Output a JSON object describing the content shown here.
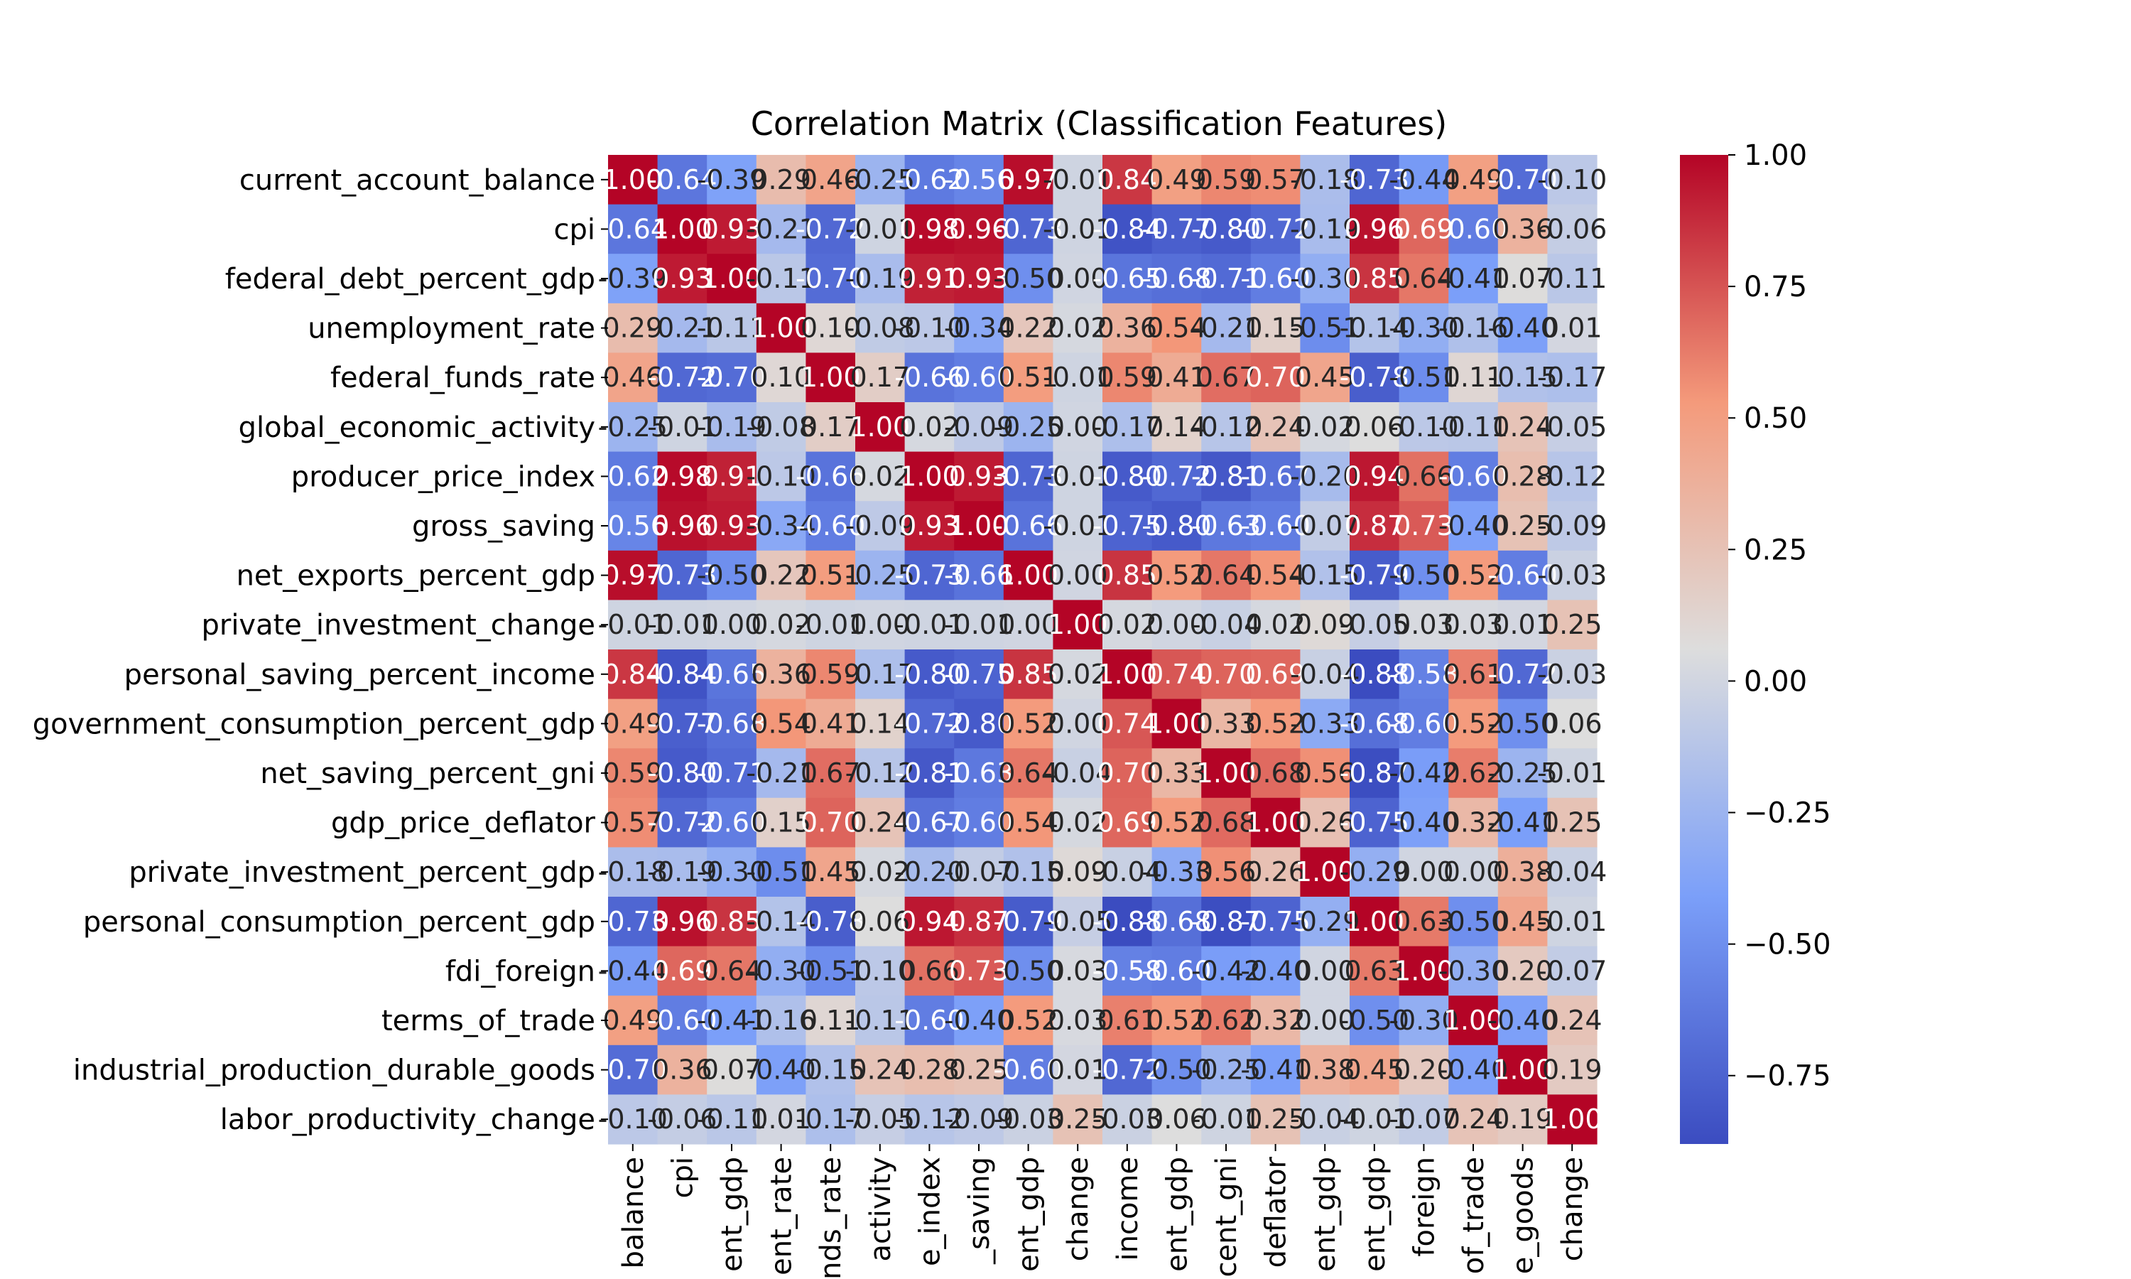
{
  "chart_data": {
    "type": "heatmap",
    "title": "Correlation Matrix (Classification Features)",
    "variables": [
      "current_account_balance",
      "cpi",
      "federal_debt_percent_gdp",
      "unemployment_rate",
      "federal_funds_rate",
      "global_economic_activity",
      "producer_price_index",
      "gross_saving",
      "net_exports_percent_gdp",
      "private_investment_change",
      "personal_saving_percent_income",
      "government_consumption_percent_gdp",
      "net_saving_percent_gni",
      "gdp_price_deflator",
      "private_investment_percent_gdp",
      "personal_consumption_percent_gdp",
      "fdi_foreign",
      "terms_of_trade",
      "industrial_production_durable_goods",
      "labor_productivity_change"
    ],
    "matrix": [
      [
        1.0,
        -0.64,
        -0.39,
        0.29,
        0.46,
        -0.25,
        -0.62,
        -0.56,
        0.97,
        -0.01,
        0.84,
        0.49,
        0.59,
        0.57,
        -0.18,
        -0.73,
        -0.44,
        0.49,
        -0.7,
        -0.1
      ],
      [
        -0.64,
        1.0,
        0.93,
        -0.21,
        -0.72,
        -0.01,
        0.98,
        0.96,
        -0.73,
        -0.01,
        -0.84,
        -0.77,
        -0.8,
        -0.72,
        -0.19,
        0.96,
        0.69,
        -0.6,
        0.36,
        -0.06
      ],
      [
        -0.39,
        0.93,
        1.0,
        -0.11,
        -0.7,
        -0.19,
        0.91,
        0.93,
        -0.5,
        -0.0,
        -0.65,
        -0.68,
        -0.71,
        -0.6,
        -0.3,
        0.85,
        0.64,
        -0.41,
        0.07,
        -0.11
      ],
      [
        0.29,
        -0.21,
        -0.11,
        1.0,
        0.1,
        -0.08,
        -0.1,
        -0.34,
        0.22,
        0.02,
        0.36,
        0.54,
        -0.21,
        0.15,
        -0.51,
        -0.14,
        -0.3,
        -0.16,
        -0.4,
        0.01
      ],
      [
        0.46,
        -0.72,
        -0.7,
        0.1,
        1.0,
        0.17,
        -0.66,
        -0.6,
        0.51,
        -0.01,
        0.59,
        0.41,
        0.67,
        0.7,
        0.45,
        -0.78,
        -0.51,
        0.11,
        -0.15,
        -0.17
      ],
      [
        -0.25,
        -0.01,
        -0.19,
        -0.08,
        0.17,
        1.0,
        0.02,
        -0.09,
        -0.25,
        -0.0,
        -0.17,
        0.14,
        -0.12,
        0.24,
        0.02,
        0.06,
        -0.1,
        -0.11,
        0.24,
        -0.05
      ],
      [
        -0.62,
        0.98,
        0.91,
        -0.1,
        -0.66,
        0.02,
        1.0,
        0.93,
        -0.73,
        -0.01,
        -0.8,
        -0.72,
        -0.81,
        -0.67,
        -0.2,
        0.94,
        0.66,
        -0.6,
        0.28,
        -0.12
      ],
      [
        -0.56,
        0.96,
        0.93,
        -0.34,
        -0.6,
        -0.09,
        0.93,
        1.0,
        -0.66,
        -0.01,
        -0.75,
        -0.8,
        -0.63,
        -0.6,
        -0.07,
        0.87,
        0.73,
        -0.4,
        0.25,
        -0.09
      ],
      [
        0.97,
        -0.73,
        -0.5,
        0.22,
        0.51,
        -0.25,
        -0.73,
        -0.66,
        1.0,
        0.0,
        0.85,
        0.52,
        0.64,
        0.54,
        -0.15,
        -0.79,
        -0.5,
        0.52,
        -0.6,
        -0.03
      ],
      [
        -0.01,
        -0.01,
        -0.0,
        0.02,
        -0.01,
        -0.0,
        -0.01,
        -0.01,
        0.0,
        1.0,
        0.02,
        -0.0,
        -0.04,
        0.02,
        0.09,
        -0.05,
        0.03,
        0.03,
        0.01,
        0.25
      ],
      [
        0.84,
        -0.84,
        -0.65,
        0.36,
        0.59,
        -0.17,
        -0.8,
        -0.75,
        0.85,
        0.02,
        1.0,
        0.74,
        0.7,
        0.69,
        -0.04,
        -0.88,
        -0.58,
        0.61,
        -0.72,
        -0.03
      ],
      [
        0.49,
        -0.77,
        -0.68,
        0.54,
        0.41,
        0.14,
        -0.72,
        -0.8,
        0.52,
        -0.0,
        0.74,
        1.0,
        0.33,
        0.52,
        -0.33,
        -0.68,
        -0.6,
        0.52,
        -0.5,
        0.06
      ],
      [
        0.59,
        -0.8,
        -0.71,
        -0.21,
        0.67,
        -0.12,
        -0.81,
        -0.63,
        0.64,
        -0.04,
        0.7,
        0.33,
        1.0,
        0.68,
        0.56,
        -0.87,
        -0.42,
        0.62,
        -0.25,
        -0.01
      ],
      [
        0.57,
        -0.72,
        -0.6,
        0.15,
        0.7,
        0.24,
        -0.67,
        -0.6,
        0.54,
        0.02,
        0.69,
        0.52,
        0.68,
        1.0,
        0.26,
        -0.75,
        -0.4,
        0.32,
        -0.41,
        0.25
      ],
      [
        -0.18,
        -0.19,
        -0.3,
        -0.51,
        0.45,
        0.02,
        -0.2,
        -0.07,
        -0.15,
        0.09,
        -0.04,
        -0.33,
        0.56,
        0.26,
        1.0,
        -0.29,
        -0.0,
        0.0,
        0.38,
        -0.04
      ],
      [
        -0.73,
        0.96,
        0.85,
        -0.14,
        -0.78,
        0.06,
        0.94,
        0.87,
        -0.79,
        -0.05,
        -0.88,
        -0.68,
        -0.87,
        -0.75,
        -0.29,
        1.0,
        0.63,
        -0.5,
        0.45,
        -0.01
      ],
      [
        -0.44,
        0.69,
        0.64,
        -0.3,
        -0.51,
        -0.1,
        0.66,
        0.73,
        -0.5,
        0.03,
        -0.58,
        -0.6,
        -0.42,
        -0.4,
        -0.0,
        0.63,
        1.0,
        -0.3,
        0.2,
        -0.07
      ],
      [
        0.49,
        -0.6,
        -0.41,
        -0.16,
        0.11,
        -0.11,
        -0.6,
        -0.4,
        0.52,
        0.03,
        0.61,
        0.52,
        0.62,
        0.32,
        0.0,
        -0.5,
        -0.3,
        1.0,
        -0.4,
        0.24
      ],
      [
        -0.7,
        0.36,
        0.07,
        -0.4,
        -0.15,
        0.24,
        0.28,
        0.25,
        -0.6,
        0.01,
        -0.72,
        -0.5,
        -0.25,
        -0.41,
        0.38,
        0.45,
        0.2,
        -0.4,
        1.0,
        0.19
      ],
      [
        -0.1,
        -0.06,
        -0.11,
        0.01,
        -0.17,
        -0.05,
        -0.12,
        -0.09,
        -0.03,
        0.25,
        -0.03,
        0.06,
        -0.01,
        0.25,
        -0.04,
        -0.01,
        -0.07,
        0.24,
        0.19,
        1.0
      ]
    ],
    "x_tick_labels": [
      "balance",
      "cpi",
      "ent_gdp",
      "ent_rate",
      "nds_rate",
      "activity",
      "e_index",
      "_saving",
      "ent_gdp",
      "change",
      "income",
      "ent_gdp",
      "cent_gni",
      "deflator",
      "ent_gdp",
      "ent_gdp",
      "foreign",
      "of_trade",
      "e_goods",
      "change"
    ],
    "colorbar": {
      "min": -0.88,
      "max": 1.0,
      "ticks": [
        "1.00",
        "0.75",
        "0.50",
        "0.25",
        "0.00",
        "−0.25",
        "−0.50",
        "−0.75"
      ],
      "tick_values": [
        1.0,
        0.75,
        0.5,
        0.25,
        0.0,
        -0.25,
        -0.5,
        -0.75
      ],
      "colormap": "coolwarm"
    }
  }
}
